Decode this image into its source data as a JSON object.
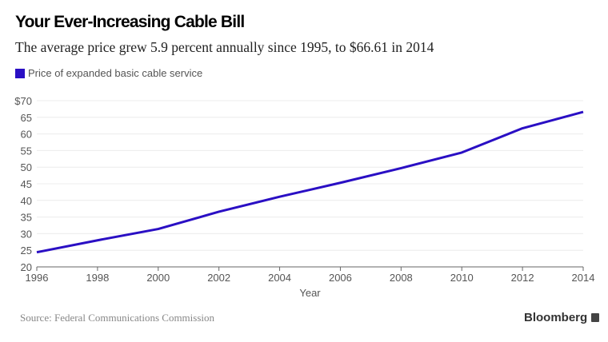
{
  "chart_data": {
    "type": "line",
    "title": "Your Ever-Increasing Cable Bill",
    "subtitle": "The average price grew 5.9 percent annually since 1995, to $66.61 in 2014",
    "xlabel": "Year",
    "ylabel": "",
    "x": [
      1996,
      1998,
      2000,
      2002,
      2004,
      2006,
      2008,
      2010,
      2012,
      2014
    ],
    "series": [
      {
        "name": "Price of expanded basic cable service",
        "color": "#2a0fc4",
        "values": [
          24.4,
          28.0,
          31.4,
          36.6,
          41.1,
          45.3,
          49.7,
          54.4,
          61.7,
          66.61
        ]
      }
    ],
    "xlim": [
      1996,
      2014
    ],
    "ylim": [
      20,
      70
    ],
    "x_ticks": [
      "1996",
      "1998",
      "2000",
      "2002",
      "2004",
      "2006",
      "2008",
      "2010",
      "2012",
      "2014"
    ],
    "y_ticks": [
      "20",
      "25",
      "30",
      "35",
      "40",
      "45",
      "50",
      "55",
      "60",
      "65",
      "$70"
    ],
    "grid": "horizontal",
    "legend_position": "top-left"
  },
  "footer": {
    "source": "Source: Federal Communications Commission",
    "brand": "Bloomberg"
  }
}
